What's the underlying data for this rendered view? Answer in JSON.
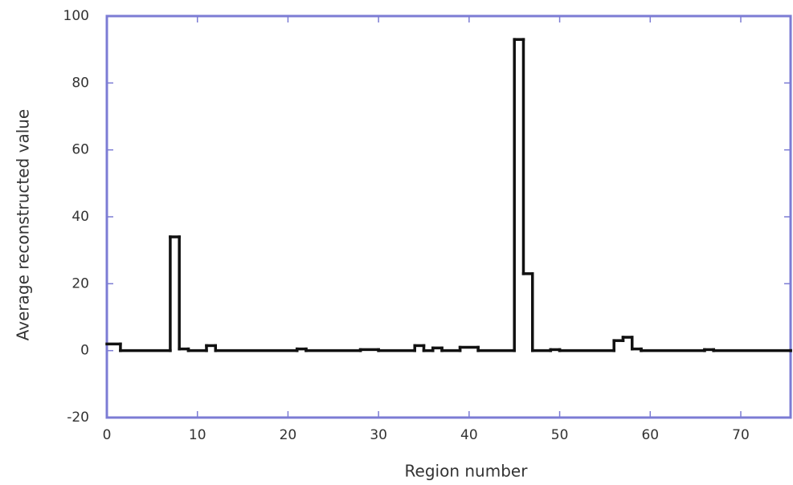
{
  "chart_data": {
    "type": "line",
    "step": "post",
    "x_label": "Region number",
    "y_label": "Average reconstructed value",
    "x": [
      0,
      1.5,
      7,
      8,
      9,
      11,
      12,
      21,
      22,
      28,
      30,
      34,
      35,
      36,
      37,
      39,
      41,
      45,
      46,
      47,
      49,
      50,
      56,
      57,
      58,
      59,
      66,
      67,
      75.5
    ],
    "series": [
      {
        "color": "#111111",
        "values": [
          2,
          0,
          34,
          0.5,
          0,
          1.5,
          0,
          0.5,
          0,
          0.3,
          0,
          1.5,
          0,
          0.8,
          0,
          1,
          0,
          93,
          23,
          0,
          0.3,
          0,
          3,
          4,
          0.5,
          0,
          0.3,
          0,
          0
        ]
      }
    ],
    "xlim": [
      0,
      75.5
    ],
    "ylim": [
      -20,
      100
    ],
    "xticks": [
      0,
      10,
      20,
      30,
      40,
      50,
      60,
      70
    ],
    "yticks": [
      -20,
      0,
      20,
      40,
      60,
      80,
      100
    ],
    "frame_color": "#7c7cd4",
    "grid": false
  }
}
